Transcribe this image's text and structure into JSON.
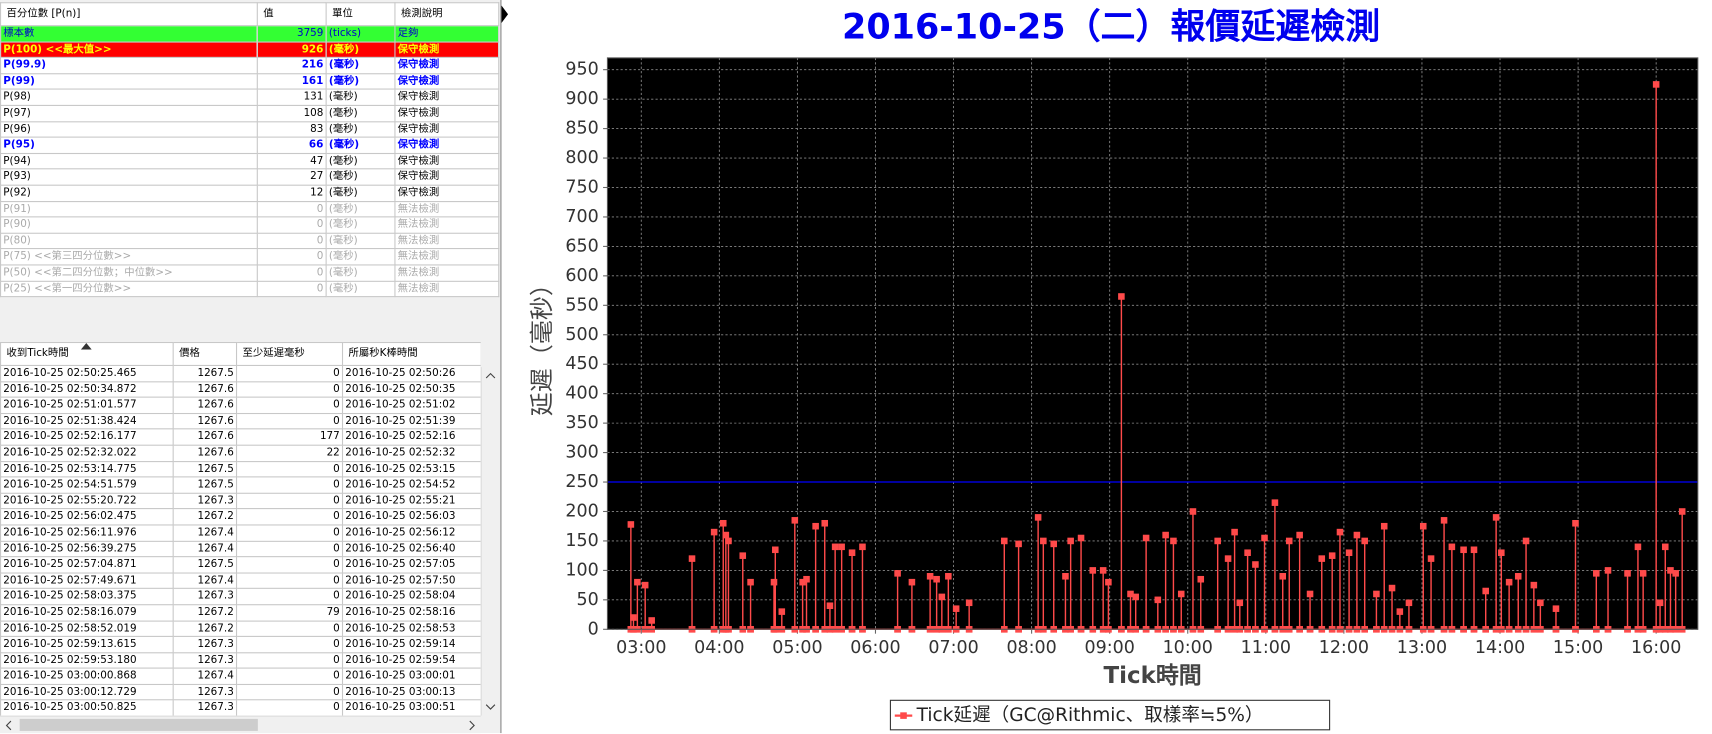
{
  "percentile_table": {
    "columns": [
      "百分位數 [P(n)]",
      "值",
      "單位",
      "檢測說明"
    ],
    "rows": [
      {
        "style": "green",
        "cells": [
          "標本數",
          3759,
          "(ticks)",
          "足夠"
        ]
      },
      {
        "style": "red",
        "cells": [
          "P(100)  <<最大值>>",
          926,
          "(毫秒)",
          "保守檢測"
        ]
      },
      {
        "style": "blue",
        "cells": [
          "P(99.9)",
          216,
          "(毫秒)",
          "保守檢測"
        ]
      },
      {
        "style": "blue",
        "cells": [
          "P(99)",
          161,
          "(毫秒)",
          "保守檢測"
        ]
      },
      {
        "style": "normal",
        "cells": [
          "P(98)",
          131,
          "(毫秒)",
          "保守檢測"
        ]
      },
      {
        "style": "normal",
        "cells": [
          "P(97)",
          108,
          "(毫秒)",
          "保守檢測"
        ]
      },
      {
        "style": "normal",
        "cells": [
          "P(96)",
          83,
          "(毫秒)",
          "保守檢測"
        ]
      },
      {
        "style": "blue",
        "cells": [
          "P(95)",
          66,
          "(毫秒)",
          "保守檢測"
        ]
      },
      {
        "style": "normal",
        "cells": [
          "P(94)",
          47,
          "(毫秒)",
          "保守檢測"
        ]
      },
      {
        "style": "normal",
        "cells": [
          "P(93)",
          27,
          "(毫秒)",
          "保守檢測"
        ]
      },
      {
        "style": "normal",
        "cells": [
          "P(92)",
          12,
          "(毫秒)",
          "保守檢測"
        ]
      },
      {
        "style": "gray",
        "cells": [
          "P(91)",
          0,
          "(毫秒)",
          "無法檢測"
        ]
      },
      {
        "style": "gray",
        "cells": [
          "P(90)",
          0,
          "(毫秒)",
          "無法檢測"
        ]
      },
      {
        "style": "gray",
        "cells": [
          "P(80)",
          0,
          "(毫秒)",
          "無法檢測"
        ]
      },
      {
        "style": "gray",
        "cells": [
          "P(75)  <<第三四分位數>>",
          0,
          "(毫秒)",
          "無法檢測"
        ]
      },
      {
        "style": "gray",
        "cells": [
          "P(50)  <<第二四分位數；中位數>>",
          0,
          "(毫秒)",
          "無法檢測"
        ]
      },
      {
        "style": "gray",
        "cells": [
          "P(25)  <<第一四分位數>>",
          0,
          "(毫秒)",
          "無法檢測"
        ]
      }
    ]
  },
  "tick_table": {
    "columns": [
      "收到Tick時間",
      "價格",
      "至少延遲毫秒",
      "所屬秒K棒時間"
    ],
    "rows": [
      [
        "2016-10-25 02:50:25.465",
        1267.5,
        0,
        "2016-10-25 02:50:26"
      ],
      [
        "2016-10-25 02:50:34.872",
        1267.6,
        0,
        "2016-10-25 02:50:35"
      ],
      [
        "2016-10-25 02:51:01.577",
        1267.6,
        0,
        "2016-10-25 02:51:02"
      ],
      [
        "2016-10-25 02:51:38.424",
        1267.6,
        0,
        "2016-10-25 02:51:39"
      ],
      [
        "2016-10-25 02:52:16.177",
        1267.6,
        177,
        "2016-10-25 02:52:16"
      ],
      [
        "2016-10-25 02:52:32.022",
        1267.6,
        22,
        "2016-10-25 02:52:32"
      ],
      [
        "2016-10-25 02:53:14.775",
        1267.5,
        0,
        "2016-10-25 02:53:15"
      ],
      [
        "2016-10-25 02:54:51.579",
        1267.5,
        0,
        "2016-10-25 02:54:52"
      ],
      [
        "2016-10-25 02:55:20.722",
        1267.3,
        0,
        "2016-10-25 02:55:21"
      ],
      [
        "2016-10-25 02:56:02.475",
        1267.2,
        0,
        "2016-10-25 02:56:03"
      ],
      [
        "2016-10-25 02:56:11.976",
        1267.4,
        0,
        "2016-10-25 02:56:12"
      ],
      [
        "2016-10-25 02:56:39.275",
        1267.4,
        0,
        "2016-10-25 02:56:40"
      ],
      [
        "2016-10-25 02:57:04.871",
        1267.5,
        0,
        "2016-10-25 02:57:05"
      ],
      [
        "2016-10-25 02:57:49.671",
        1267.4,
        0,
        "2016-10-25 02:57:50"
      ],
      [
        "2016-10-25 02:58:03.375",
        1267.3,
        0,
        "2016-10-25 02:58:04"
      ],
      [
        "2016-10-25 02:58:16.079",
        1267.2,
        79,
        "2016-10-25 02:58:16"
      ],
      [
        "2016-10-25 02:58:52.019",
        1267.2,
        0,
        "2016-10-25 02:58:53"
      ],
      [
        "2016-10-25 02:59:13.615",
        1267.3,
        0,
        "2016-10-25 02:59:14"
      ],
      [
        "2016-10-25 02:59:53.180",
        1267.3,
        0,
        "2016-10-25 02:59:54"
      ],
      [
        "2016-10-25 03:00:00.868",
        1267.4,
        0,
        "2016-10-25 03:00:01"
      ],
      [
        "2016-10-25 03:00:12.729",
        1267.3,
        0,
        "2016-10-25 03:00:13"
      ],
      [
        "2016-10-25 03:00:50.825",
        1267.3,
        0,
        "2016-10-25 03:00:51"
      ]
    ]
  },
  "chart_data": {
    "type": "line",
    "title": "2016-10-25（二）報價延遲檢測",
    "title_color": "#0000ee",
    "x_label": "Tick時間",
    "y_label": "延遲（毫秒）",
    "xlim": [
      "02:34",
      "16:32"
    ],
    "xticks": [
      "03:00",
      "04:00",
      "05:00",
      "06:00",
      "07:00",
      "08:00",
      "09:00",
      "10:00",
      "11:00",
      "12:00",
      "13:00",
      "14:00",
      "15:00",
      "16:00"
    ],
    "ylim": [
      0,
      970
    ],
    "yticks": [
      0,
      50,
      100,
      150,
      200,
      250,
      300,
      350,
      400,
      450,
      500,
      550,
      600,
      650,
      700,
      750,
      800,
      850,
      900,
      950
    ],
    "grid": true,
    "plot_background": "#000000",
    "legend": "bottom",
    "reference_lines": [
      {
        "value": 250,
        "color": "#0000ff"
      }
    ],
    "x": [
      "02:52",
      "02:52",
      "02:52",
      "02:54",
      "02:54",
      "02:54",
      "02:57",
      "02:57",
      "02:57",
      "03:03",
      "03:03",
      "03:03",
      "03:08",
      "03:08",
      "03:08",
      "03:39",
      "03:39",
      "03:39",
      "03:56",
      "03:56",
      "03:56",
      "04:03",
      "04:03",
      "04:03",
      "04:05",
      "04:05",
      "04:05",
      "04:07",
      "04:07",
      "04:07",
      "04:18",
      "04:18",
      "04:18",
      "04:24",
      "04:24",
      "04:24",
      "04:42",
      "04:42",
      "04:42",
      "04:43",
      "04:43",
      "04:43",
      "04:48",
      "04:48",
      "04:48",
      "04:58",
      "04:58",
      "04:58",
      "05:04",
      "05:04",
      "05:04",
      "05:07",
      "05:07",
      "05:07",
      "05:14",
      "05:14",
      "05:14",
      "05:21",
      "05:21",
      "05:21",
      "05:25",
      "05:25",
      "05:25",
      "05:29",
      "05:29",
      "05:29",
      "05:34",
      "05:34",
      "05:34",
      "05:42",
      "05:42",
      "05:42",
      "05:50",
      "05:50",
      "05:50",
      "06:17",
      "06:17",
      "06:17",
      "06:28",
      "06:28",
      "06:28",
      "06:42",
      "06:42",
      "06:42",
      "06:47",
      "06:47",
      "06:47",
      "06:51",
      "06:51",
      "06:51",
      "06:56",
      "06:56",
      "06:56",
      "07:02",
      "07:02",
      "07:02",
      "07:12",
      "07:12",
      "07:12",
      "07:39",
      "07:39",
      "07:39",
      "07:50",
      "07:50",
      "07:50",
      "08:05",
      "08:05",
      "08:05",
      "08:09",
      "08:09",
      "08:09",
      "08:17",
      "08:17",
      "08:17",
      "08:26",
      "08:26",
      "08:26",
      "08:30",
      "08:30",
      "08:30",
      "08:38",
      "08:38",
      "08:38",
      "08:47",
      "08:47",
      "08:47",
      "08:55",
      "08:55",
      "08:55",
      "08:59",
      "08:59",
      "08:59",
      "09:09",
      "09:09",
      "09:09",
      "09:16",
      "09:16",
      "09:16",
      "09:20",
      "09:20",
      "09:20",
      "09:28",
      "09:28",
      "09:28",
      "09:37",
      "09:37",
      "09:37",
      "09:43",
      "09:43",
      "09:43",
      "09:49",
      "09:49",
      "09:49",
      "09:55",
      "09:55",
      "09:55",
      "10:04",
      "10:04",
      "10:04",
      "10:10",
      "10:10",
      "10:10",
      "10:23",
      "10:23",
      "10:23",
      "10:31",
      "10:31",
      "10:31",
      "10:36",
      "10:36",
      "10:36",
      "10:40",
      "10:40",
      "10:40",
      "10:46",
      "10:46",
      "10:46",
      "10:52",
      "10:52",
      "10:52",
      "10:59",
      "10:59",
      "10:59",
      "11:07",
      "11:07",
      "11:07",
      "11:13",
      "11:13",
      "11:13",
      "11:18",
      "11:18",
      "11:18",
      "11:26",
      "11:26",
      "11:26",
      "11:34",
      "11:34",
      "11:34",
      "11:43",
      "11:43",
      "11:43",
      "11:51",
      "11:51",
      "11:51",
      "11:57",
      "11:57",
      "11:57",
      "12:04",
      "12:04",
      "12:04",
      "12:10",
      "12:10",
      "12:10",
      "12:16",
      "12:16",
      "12:16",
      "12:25",
      "12:25",
      "12:25",
      "12:31",
      "12:31",
      "12:31",
      "12:37",
      "12:37",
      "12:37",
      "12:43",
      "12:43",
      "12:43",
      "12:50",
      "12:50",
      "12:50",
      "13:01",
      "13:01",
      "13:01",
      "13:07",
      "13:07",
      "13:07",
      "13:17",
      "13:17",
      "13:17",
      "13:23",
      "13:23",
      "13:23",
      "13:32",
      "13:32",
      "13:32",
      "13:40",
      "13:40",
      "13:40",
      "13:49",
      "13:49",
      "13:49",
      "13:57",
      "13:57",
      "13:57",
      "14:01",
      "14:01",
      "14:01",
      "14:07",
      "14:07",
      "14:07",
      "14:14",
      "14:14",
      "14:14",
      "14:20",
      "14:20",
      "14:20",
      "14:26",
      "14:26",
      "14:26",
      "14:31",
      "14:31",
      "14:31",
      "14:43",
      "14:43",
      "14:43",
      "14:58",
      "14:58",
      "14:58",
      "15:14",
      "15:14",
      "15:14",
      "15:23",
      "15:23",
      "15:23",
      "15:38",
      "15:38",
      "15:38",
      "15:46",
      "15:46",
      "15:46",
      "15:50",
      "15:50",
      "15:50",
      "16:00",
      "16:00",
      "16:00",
      "16:03",
      "16:03",
      "16:03",
      "16:07",
      "16:07",
      "16:07",
      "16:11",
      "16:11",
      "16:11",
      "16:15",
      "16:15",
      "16:15",
      "16:20",
      "16:20",
      "16:20"
    ],
    "series": [
      {
        "name": "Tick延遲（GC@Rithmic、取樣率≒5%）",
        "color": "#ff4a4a",
        "values": [
          0,
          178,
          0,
          0,
          20,
          0,
          0,
          80,
          0,
          0,
          75,
          0,
          0,
          15,
          0,
          0,
          120,
          0,
          0,
          165,
          0,
          0,
          180,
          0,
          0,
          160,
          0,
          0,
          150,
          0,
          0,
          125,
          0,
          0,
          80,
          0,
          0,
          80,
          0,
          0,
          135,
          0,
          0,
          30,
          0,
          0,
          185,
          0,
          0,
          80,
          0,
          0,
          85,
          0,
          0,
          175,
          0,
          0,
          180,
          0,
          0,
          40,
          0,
          0,
          140,
          0,
          0,
          140,
          0,
          0,
          130,
          0,
          0,
          140,
          0,
          0,
          95,
          0,
          0,
          80,
          0,
          0,
          90,
          0,
          0,
          85,
          0,
          0,
          55,
          0,
          0,
          90,
          0,
          0,
          35,
          0,
          0,
          45,
          0,
          0,
          150,
          0,
          0,
          145,
          0,
          0,
          190,
          0,
          0,
          150,
          0,
          0,
          145,
          0,
          0,
          90,
          0,
          0,
          150,
          0,
          0,
          155,
          0,
          0,
          100,
          0,
          0,
          100,
          0,
          0,
          80,
          0,
          0,
          565,
          0,
          0,
          60,
          0,
          0,
          55,
          0,
          0,
          155,
          0,
          0,
          50,
          0,
          0,
          160,
          0,
          0,
          150,
          0,
          0,
          60,
          0,
          0,
          200,
          0,
          0,
          85,
          0,
          0,
          150,
          0,
          0,
          120,
          0,
          0,
          165,
          0,
          0,
          45,
          0,
          0,
          130,
          0,
          0,
          110,
          0,
          0,
          155,
          0,
          0,
          215,
          0,
          0,
          90,
          0,
          0,
          150,
          0,
          0,
          160,
          0,
          0,
          60,
          0,
          0,
          120,
          0,
          0,
          125,
          0,
          0,
          165,
          0,
          0,
          130,
          0,
          0,
          160,
          0,
          0,
          150,
          0,
          0,
          60,
          0,
          0,
          175,
          0,
          0,
          70,
          0,
          0,
          30,
          0,
          0,
          45,
          0,
          0,
          175,
          0,
          0,
          120,
          0,
          0,
          185,
          0,
          0,
          140,
          0,
          0,
          135,
          0,
          0,
          135,
          0,
          0,
          65,
          0,
          0,
          190,
          0,
          0,
          130,
          0,
          0,
          80,
          0,
          0,
          90,
          0,
          0,
          150,
          0,
          0,
          75,
          0,
          0,
          45,
          0,
          0,
          35,
          0,
          0,
          180,
          0,
          0,
          95,
          0,
          0,
          100,
          0,
          0,
          95,
          0,
          0,
          140,
          0,
          0,
          95,
          0,
          0,
          925,
          0,
          0,
          45,
          0,
          0,
          140,
          0,
          0,
          100,
          0,
          0,
          95,
          0,
          0,
          200,
          0
        ]
      }
    ]
  }
}
